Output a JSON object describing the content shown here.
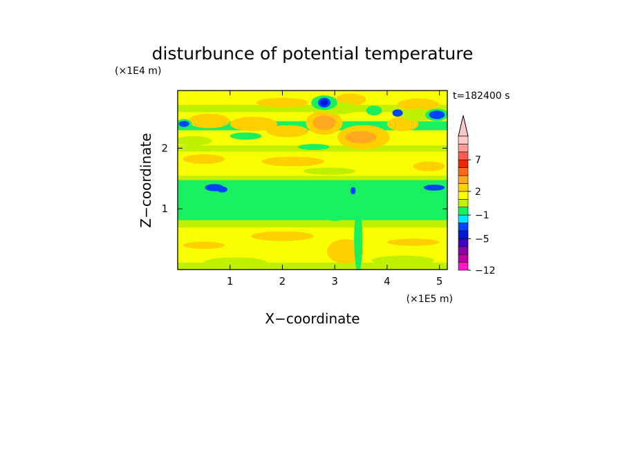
{
  "chart_data": {
    "type": "heatmap",
    "title": "disturbunce of potential temperature",
    "xlabel": "X−coordinate",
    "ylabel": "Z−coordinate",
    "x_multiplier": "(×1E5 m)",
    "y_multiplier": "(×1E4 m)",
    "time_label": "t=182400 s",
    "xlim": [
      0,
      5.15
    ],
    "ylim": [
      0,
      2.95
    ],
    "x_ticks": [
      1,
      2,
      3,
      4,
      5
    ],
    "y_ticks": [
      1,
      2
    ],
    "colorbar": {
      "levels": [
        -12,
        -11,
        -9,
        -7,
        -5,
        -4,
        -3,
        -1,
        0,
        1,
        2,
        3,
        4,
        5,
        7,
        8,
        9
      ],
      "colors": [
        "#ff18c8",
        "#c0009c",
        "#8c00a8",
        "#4000c0",
        "#0018d8",
        "#0044ff",
        "#00e8ff",
        "#18f060",
        "#bff000",
        "#f8ff00",
        "#ffd000",
        "#ffa820",
        "#ff6c10",
        "#f02800",
        "#ff5c50",
        "#ff9c98",
        "#ffc8c8"
      ],
      "tick_labels": [
        "7",
        "2",
        "−1",
        "−5",
        "−12"
      ],
      "extend": "max"
    },
    "bands": [
      {
        "zmin": 0.0,
        "zmax": 0.12,
        "value": 0.3
      },
      {
        "zmin": 0.12,
        "zmax": 0.7,
        "value": 1.2
      },
      {
        "zmin": 0.7,
        "zmax": 0.82,
        "value": 0.3
      },
      {
        "zmin": 0.82,
        "zmax": 1.48,
        "value": -0.5
      },
      {
        "zmin": 1.48,
        "zmax": 1.55,
        "value": 0.3
      },
      {
        "zmin": 1.55,
        "zmax": 1.95,
        "value": 1.5
      },
      {
        "zmin": 1.95,
        "zmax": 2.05,
        "value": 0.3
      },
      {
        "zmin": 2.05,
        "zmax": 2.3,
        "value": 1.5
      },
      {
        "zmin": 2.3,
        "zmax": 2.45,
        "value": -0.5
      },
      {
        "zmin": 2.45,
        "zmax": 2.6,
        "value": 1.5
      },
      {
        "zmin": 2.6,
        "zmax": 2.72,
        "value": 0.3
      },
      {
        "zmin": 2.72,
        "zmax": 2.95,
        "value": 1.5
      }
    ],
    "features": [
      {
        "x": 2.8,
        "z": 2.42,
        "rx": 0.35,
        "rz": 0.2,
        "value": 2.5
      },
      {
        "x": 2.8,
        "z": 2.42,
        "rx": 0.22,
        "rz": 0.12,
        "value": 3.5
      },
      {
        "x": 3.55,
        "z": 2.18,
        "rx": 0.5,
        "rz": 0.2,
        "value": 2.5
      },
      {
        "x": 3.5,
        "z": 2.18,
        "rx": 0.3,
        "rz": 0.1,
        "value": 3.5
      },
      {
        "x": 2.1,
        "z": 2.28,
        "rx": 0.4,
        "rz": 0.1,
        "value": 2.5
      },
      {
        "x": 1.45,
        "z": 2.4,
        "rx": 0.45,
        "rz": 0.12,
        "value": 2.5
      },
      {
        "x": 4.3,
        "z": 2.4,
        "rx": 0.3,
        "rz": 0.12,
        "value": 2.5
      },
      {
        "x": 0.6,
        "z": 2.45,
        "rx": 0.4,
        "rz": 0.12,
        "value": 2.5
      },
      {
        "x": 2.0,
        "z": 2.75,
        "rx": 0.5,
        "rz": 0.08,
        "value": 2.5
      },
      {
        "x": 3.3,
        "z": 2.8,
        "rx": 0.3,
        "rz": 0.1,
        "value": 2.5
      },
      {
        "x": 4.6,
        "z": 2.72,
        "rx": 0.4,
        "rz": 0.1,
        "value": 2.5
      },
      {
        "x": 2.2,
        "z": 1.78,
        "rx": 0.6,
        "rz": 0.08,
        "value": 2.5
      },
      {
        "x": 0.5,
        "z": 1.82,
        "rx": 0.4,
        "rz": 0.08,
        "value": 2.5
      },
      {
        "x": 4.8,
        "z": 1.7,
        "rx": 0.3,
        "rz": 0.08,
        "value": 2.5
      },
      {
        "x": 3.1,
        "z": 2.66,
        "rx": 0.35,
        "rz": 0.1,
        "value": 0.3
      },
      {
        "x": 4.6,
        "z": 2.55,
        "rx": 0.35,
        "rz": 0.1,
        "value": 0.3
      },
      {
        "x": 2.9,
        "z": 1.62,
        "rx": 0.5,
        "rz": 0.06,
        "value": 0.3
      },
      {
        "x": 0.3,
        "z": 2.12,
        "rx": 0.35,
        "rz": 0.08,
        "value": 0.3
      },
      {
        "x": 2.8,
        "z": 2.75,
        "rx": 0.25,
        "rz": 0.12,
        "value": -0.5
      },
      {
        "x": 2.8,
        "z": 2.75,
        "rx": 0.12,
        "rz": 0.08,
        "value": -3.5
      },
      {
        "x": 2.8,
        "z": 2.75,
        "rx": 0.07,
        "rz": 0.05,
        "value": -4.5
      },
      {
        "x": 3.75,
        "z": 2.62,
        "rx": 0.15,
        "rz": 0.08,
        "value": -0.5
      },
      {
        "x": 4.2,
        "z": 2.58,
        "rx": 0.1,
        "rz": 0.06,
        "value": -3.5
      },
      {
        "x": 4.95,
        "z": 2.55,
        "rx": 0.22,
        "rz": 0.1,
        "value": -0.5
      },
      {
        "x": 4.95,
        "z": 2.55,
        "rx": 0.15,
        "rz": 0.07,
        "value": -3.5
      },
      {
        "x": 0.12,
        "z": 2.4,
        "rx": 0.15,
        "rz": 0.08,
        "value": -0.5
      },
      {
        "x": 0.12,
        "z": 2.4,
        "rx": 0.1,
        "rz": 0.05,
        "value": -3.5
      },
      {
        "x": 1.3,
        "z": 2.2,
        "rx": 0.3,
        "rz": 0.06,
        "value": -0.5
      },
      {
        "x": 2.6,
        "z": 2.02,
        "rx": 0.3,
        "rz": 0.05,
        "value": -0.5
      },
      {
        "x": 0.7,
        "z": 1.35,
        "rx": 0.18,
        "rz": 0.06,
        "value": -3.5
      },
      {
        "x": 0.85,
        "z": 1.32,
        "rx": 0.1,
        "rz": 0.05,
        "value": -3.5
      },
      {
        "x": 4.9,
        "z": 1.35,
        "rx": 0.2,
        "rz": 0.05,
        "value": -3.5
      },
      {
        "x": 3.35,
        "z": 1.3,
        "rx": 0.05,
        "rz": 0.06,
        "value": -3.5
      },
      {
        "x": 3.0,
        "z": 0.95,
        "rx": 0.25,
        "rz": 0.15,
        "value": -0.5
      },
      {
        "x": 2.0,
        "z": 0.55,
        "rx": 0.6,
        "rz": 0.08,
        "value": 2.5
      },
      {
        "x": 0.5,
        "z": 0.4,
        "rx": 0.4,
        "rz": 0.06,
        "value": 2.5
      },
      {
        "x": 4.5,
        "z": 0.45,
        "rx": 0.5,
        "rz": 0.06,
        "value": 2.5
      },
      {
        "x": 3.2,
        "z": 0.3,
        "rx": 0.35,
        "rz": 0.2,
        "value": 2.5
      },
      {
        "x": 3.45,
        "z": 0.5,
        "rx": 0.08,
        "rz": 0.55,
        "value": -0.5
      },
      {
        "x": 1.1,
        "z": 0.12,
        "rx": 0.6,
        "rz": 0.08,
        "value": 0.3
      },
      {
        "x": 4.3,
        "z": 0.15,
        "rx": 0.6,
        "rz": 0.08,
        "value": 0.3
      }
    ]
  }
}
